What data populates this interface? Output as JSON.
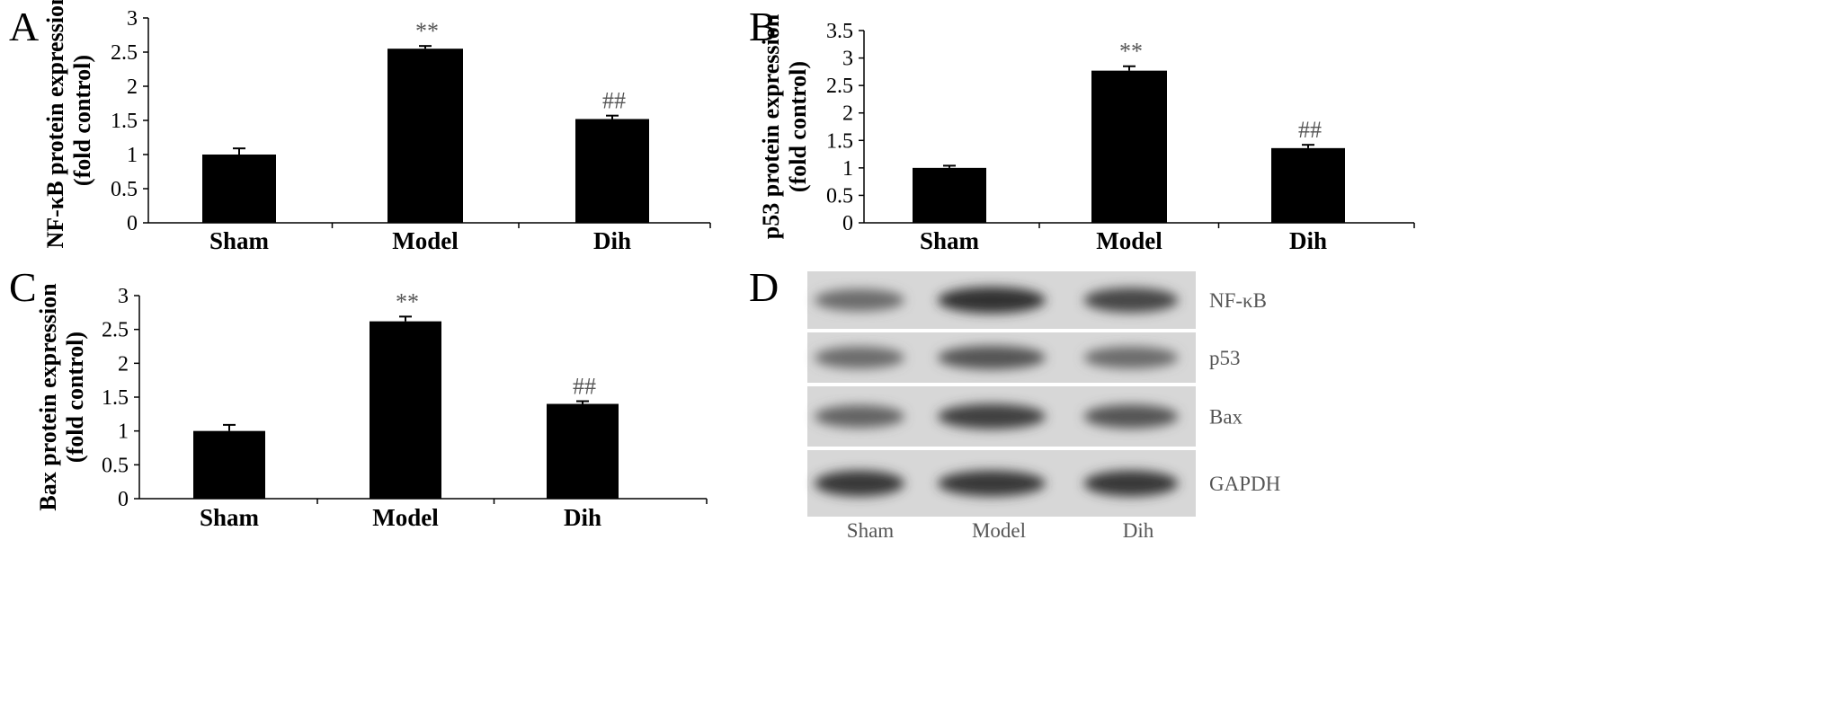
{
  "chart_data": [
    {
      "panel": "A",
      "type": "bar",
      "categories": [
        "Sham",
        "Model",
        "Dih"
      ],
      "values": [
        1.0,
        2.55,
        1.52
      ],
      "errors": [
        0.09,
        0.04,
        0.05
      ],
      "annotations": [
        "",
        "**",
        "##"
      ],
      "ylabel_line1": "NF-κB protein expression",
      "ylabel_line2": "(fold control)",
      "ylim": [
        0,
        3
      ],
      "yticks": [
        "0",
        "0.5",
        "1",
        "1.5",
        "2",
        "2.5",
        "3"
      ],
      "bar_color": "#000000"
    },
    {
      "panel": "B",
      "type": "bar",
      "categories": [
        "Sham",
        "Model",
        "Dih"
      ],
      "values": [
        1.0,
        2.77,
        1.36
      ],
      "errors": [
        0.04,
        0.08,
        0.06
      ],
      "annotations": [
        "",
        "**",
        "##"
      ],
      "ylabel_line1": "p53 protein expression",
      "ylabel_line2": "(fold control)",
      "ylim": [
        0,
        3.5
      ],
      "yticks": [
        "0",
        "0.5",
        "1",
        "1.5",
        "2",
        "2.5",
        "3",
        "3.5"
      ],
      "bar_color": "#000000"
    },
    {
      "panel": "C",
      "type": "bar",
      "categories": [
        "Sham",
        "Model",
        "Dih"
      ],
      "values": [
        1.0,
        2.62,
        1.4
      ],
      "errors": [
        0.09,
        0.07,
        0.04
      ],
      "annotations": [
        "",
        "**",
        "##"
      ],
      "ylabel_line1": "Bax protein expression",
      "ylabel_line2": "(fold control)",
      "ylim": [
        0,
        3
      ],
      "yticks": [
        "0",
        "0.5",
        "1",
        "1.5",
        "2",
        "2.5",
        "3"
      ],
      "bar_color": "#000000"
    }
  ],
  "blot": {
    "panel": "D",
    "rows": [
      "NF-κB",
      "p53",
      "Bax",
      "GAPDH"
    ],
    "lanes": [
      "Sham",
      "Model",
      "Dih"
    ],
    "intensities": [
      [
        0.55,
        0.95,
        0.8
      ],
      [
        0.55,
        0.7,
        0.55
      ],
      [
        0.6,
        0.85,
        0.7
      ],
      [
        0.9,
        0.9,
        0.9
      ]
    ]
  }
}
